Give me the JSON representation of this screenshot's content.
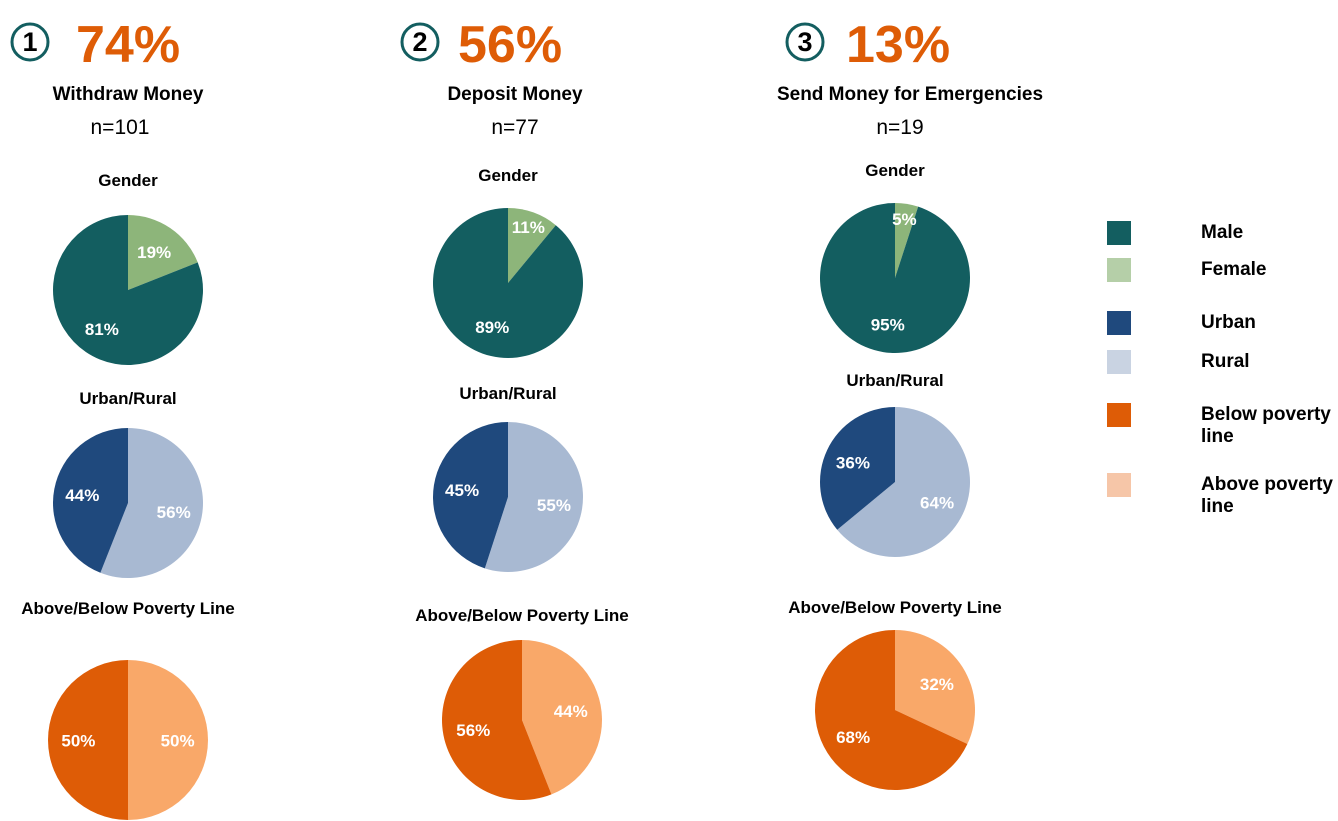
{
  "panels": [
    {
      "number": 1,
      "headline": {
        "value": 74,
        "label": "74%"
      },
      "title": "Withdraw Money",
      "n": "n=101"
    },
    {
      "number": 2,
      "headline": {
        "value": 56,
        "label": "56%"
      },
      "title": "Deposit Money",
      "n": "n=77"
    },
    {
      "number": 3,
      "headline": {
        "value": 13,
        "label": "13%"
      },
      "title": "Send Money for Emergencies",
      "n": "n=19"
    }
  ],
  "legend": [
    {
      "name": "Male",
      "color": "#135e60"
    },
    {
      "name": "Female",
      "color": "#b5cfa8"
    },
    {
      "name": "Urban",
      "color": "#1f497d"
    },
    {
      "name": "Rural",
      "color": "#c9d3e2"
    },
    {
      "name": "Below poverty line",
      "color": "#de5c06"
    },
    {
      "name": "Above poverty line",
      "color": "#f6c6a8"
    }
  ],
  "chart_data": [
    {
      "type": "pie",
      "title": "Gender",
      "values": [
        19,
        81
      ],
      "value_labels": [
        "19%",
        "81%"
      ],
      "colors": [
        "#8db57a",
        "#135e60"
      ]
    },
    {
      "type": "pie",
      "title": "Urban/Rural",
      "values": [
        56,
        44
      ],
      "value_labels": [
        "56%",
        "44%"
      ],
      "colors": [
        "#a8b9d2",
        "#1f497d"
      ]
    },
    {
      "type": "pie",
      "title": "Above/Below Poverty Line",
      "values": [
        50,
        50
      ],
      "value_labels": [
        "50%",
        "50%"
      ],
      "colors": [
        "#f9a869",
        "#de5c06"
      ]
    },
    {
      "type": "pie",
      "title": "Gender",
      "values": [
        11,
        89
      ],
      "value_labels": [
        "11%",
        "89%"
      ],
      "colors": [
        "#8db57a",
        "#135e60"
      ]
    },
    {
      "type": "pie",
      "title": "Urban/Rural",
      "values": [
        55,
        45
      ],
      "value_labels": [
        "55%",
        "45%"
      ],
      "colors": [
        "#a8b9d2",
        "#1f497d"
      ]
    },
    {
      "type": "pie",
      "title": "Above/Below Poverty Line",
      "values": [
        44,
        56
      ],
      "value_labels": [
        "44%",
        "56%"
      ],
      "colors": [
        "#f9a869",
        "#de5c06"
      ]
    },
    {
      "type": "pie",
      "title": "Gender",
      "values": [
        5,
        95
      ],
      "value_labels": [
        "5%",
        "95%"
      ],
      "colors": [
        "#8db57a",
        "#135e60"
      ]
    },
    {
      "type": "pie",
      "title": "Urban/Rural",
      "values": [
        64,
        36
      ],
      "value_labels": [
        "64%",
        "36%"
      ],
      "colors": [
        "#a8b9d2",
        "#1f497d"
      ]
    },
    {
      "type": "pie",
      "title": "Above/Below Poverty Line",
      "values": [
        32,
        68
      ],
      "value_labels": [
        "32%",
        "68%"
      ],
      "colors": [
        "#f9a869",
        "#de5c06"
      ]
    }
  ]
}
